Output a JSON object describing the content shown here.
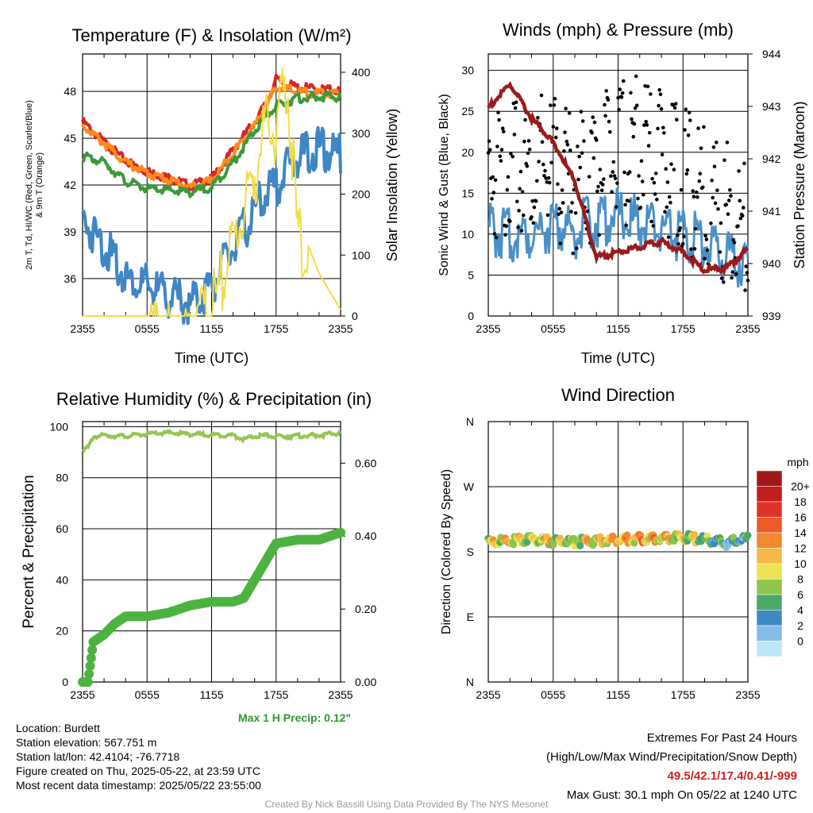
{
  "chart_data": [
    {
      "type": "line",
      "title": "Temperature (F) & Insolation (W/m²)",
      "xlabel": "Time (UTC)",
      "ylabel_lines": [
        "2m T, Td, HI/WC (Red, Green, Scarlet/Blue)",
        "& 9m T (Orange)"
      ],
      "ylabel_right": "Solar Insolation (Yellow)",
      "x_ticks": [
        "2355",
        "0555",
        "1155",
        "1755",
        "2355"
      ],
      "ylim": [
        33.6,
        50.4
      ],
      "y_ticks": [
        36,
        39,
        42,
        45,
        48
      ],
      "ylim_right": [
        0,
        430
      ],
      "y_ticks_right": [
        0,
        100,
        200,
        300,
        400
      ],
      "x_hours": [
        0,
        2,
        4,
        6,
        8,
        10,
        12,
        14,
        16,
        17,
        18,
        19,
        20,
        22,
        24
      ],
      "series": [
        {
          "color": "#d62728",
          "values": [
            46.2,
            44.9,
            43.7,
            43.0,
            42.6,
            42.1,
            42.5,
            44.4,
            46.2,
            47.3,
            48.9,
            48.6,
            48.4,
            48.3,
            48.2
          ]
        },
        {
          "color": "#ff8c1a",
          "values": [
            46.0,
            44.8,
            43.6,
            42.9,
            42.5,
            42.0,
            42.4,
            44.2,
            46.0,
            47.0,
            48.5,
            48.3,
            48.1,
            48.0,
            48.0
          ]
        },
        {
          "color": "#3a9a3a",
          "values": [
            44.0,
            43.6,
            42.4,
            41.9,
            41.8,
            41.7,
            42.0,
            43.6,
            45.6,
            46.5,
            47.2,
            47.5,
            47.7,
            47.8,
            47.8
          ]
        },
        {
          "color": "#3e86c6",
          "values": [
            40.5,
            38.8,
            36.8,
            36.2,
            35.6,
            35.0,
            36.3,
            38.6,
            41.0,
            42.2,
            42.6,
            43.8,
            44.6,
            45.0,
            44.6
          ]
        },
        {
          "color": "#f2dc4a",
          "axis": "right",
          "values": [
            0,
            0,
            0,
            0,
            0,
            0,
            40,
            150,
            260,
            340,
            330,
            420,
            160,
            70,
            10
          ]
        }
      ]
    },
    {
      "type": "scatter",
      "title": "Winds (mph) & Pressure (mb)",
      "xlabel": "Time (UTC)",
      "ylabel": "Sonic Wind & Gust (Blue, Black)",
      "ylabel_right": "Station Pressure (Maroon)",
      "x_ticks": [
        "2355",
        "0555",
        "1155",
        "1755",
        "2355"
      ],
      "ylim": [
        0,
        32
      ],
      "y_ticks": [
        0,
        5,
        10,
        15,
        20,
        25,
        30
      ],
      "ylim_right": [
        939,
        944
      ],
      "y_ticks_right": [
        939,
        940,
        941,
        942,
        943,
        944
      ],
      "x_hours": [
        0,
        2,
        4,
        6,
        8,
        10,
        12,
        14,
        16,
        18,
        20,
        22,
        24
      ],
      "wind": [
        12.5,
        11.5,
        12.0,
        13.0,
        12.0,
        13.5,
        14.0,
        13.0,
        12.5,
        11.5,
        11.0,
        9.0,
        8.5
      ],
      "gust": [
        22.0,
        23.5,
        22.0,
        23.0,
        20.5,
        23.0,
        24.0,
        25.0,
        24.0,
        21.0,
        19.0,
        17.0,
        14.0
      ],
      "pressure": [
        943.0,
        943.45,
        942.8,
        942.35,
        941.6,
        940.15,
        940.25,
        940.35,
        940.45,
        940.25,
        939.9,
        939.95,
        940.3
      ],
      "series_colors": {
        "wind": "#4a90c8",
        "gust": "#000000",
        "pressure": "#9b1b1b"
      }
    },
    {
      "type": "line",
      "title": "Relative Humidity (%) & Precipitation (in)",
      "ylabel": "Percent & Precipitation",
      "x_ticks": [
        "2355",
        "0555",
        "1155",
        "1755",
        "2355"
      ],
      "ylim": [
        0,
        102
      ],
      "y_ticks": [
        0,
        20,
        40,
        60,
        80,
        100
      ],
      "ylim_right": [
        0,
        0.714
      ],
      "y_ticks_right_labels": [
        "0.00",
        "0.20",
        "0.40",
        "0.60"
      ],
      "y_ticks_right": [
        0,
        0.2,
        0.4,
        0.6
      ],
      "x_hours": [
        0,
        0.5,
        1,
        2,
        3,
        4,
        6,
        8,
        10,
        12,
        14,
        15,
        16,
        17,
        18,
        20,
        22,
        24
      ],
      "series": [
        {
          "color": "#90c850",
          "values": [
            91.5,
            92.0,
            96.5,
            97.0,
            96.8,
            96.7,
            97.5,
            98.0,
            97.5,
            97.2,
            97.0,
            95.5,
            96.5,
            97.0,
            96.5,
            96.8,
            97.0,
            98.0
          ]
        },
        {
          "color": "#4cb340",
          "axis": "right",
          "values": [
            0.0,
            0.0,
            0.11,
            0.13,
            0.16,
            0.18,
            0.18,
            0.19,
            0.21,
            0.22,
            0.22,
            0.23,
            0.28,
            0.33,
            0.38,
            0.39,
            0.39,
            0.41
          ]
        }
      ]
    },
    {
      "type": "scatter",
      "title": "Wind Direction",
      "ylabel": "Direction (Colored By Speed)",
      "x_ticks": [
        "2355",
        "0555",
        "1155",
        "1755",
        "2355"
      ],
      "y_ticks": [
        "N",
        "E",
        "S",
        "W",
        "N"
      ],
      "ylim": [
        0,
        360
      ],
      "x_hours": [
        0,
        2,
        4,
        6,
        8,
        10,
        12,
        14,
        16,
        18,
        20,
        22,
        24
      ],
      "direction": [
        196,
        198,
        200,
        198,
        197,
        198,
        200,
        201,
        202,
        203,
        200,
        195,
        201
      ],
      "speed": [
        13,
        14,
        12,
        13,
        11,
        14,
        15,
        16,
        14,
        12,
        10,
        7,
        8
      ],
      "colorbar": {
        "title": "mph",
        "labels": [
          "20+",
          "18",
          "16",
          "14",
          "12",
          "10",
          "8",
          "6",
          "4",
          "2",
          "0"
        ],
        "colors": [
          "#9e1a1a",
          "#c41e1e",
          "#de3326",
          "#ee5a28",
          "#f28a30",
          "#f6b848",
          "#ede254",
          "#8cc64a",
          "#4aa86a",
          "#3d89c4",
          "#86bde6",
          "#bfe6f8"
        ]
      }
    }
  ],
  "precip_note": "Max 1 H Precip: 0.12\"",
  "info": {
    "location": "Location: Burdett",
    "elevation": "Station elevation: 567.751 m",
    "latlon": "Station lat/lon: 42.4104; -76.7718",
    "created": "Figure created on Thu, 2025-05-22, at 23:59 UTC",
    "recent": "Most recent data timestamp: 2025/05/22 23:55:00"
  },
  "extremes": {
    "heading": "Extremes For Past 24 Hours",
    "subheading": "(High/Low/Max Wind/Precipitation/Snow Depth)",
    "values": "49.5/42.1/17.4/0.41/-999",
    "gust": "Max Gust: 30.1 mph On 05/22 at 1240 UTC"
  },
  "credit": "Created By Nick Bassill Using Data Provided By The NYS Mesonet"
}
